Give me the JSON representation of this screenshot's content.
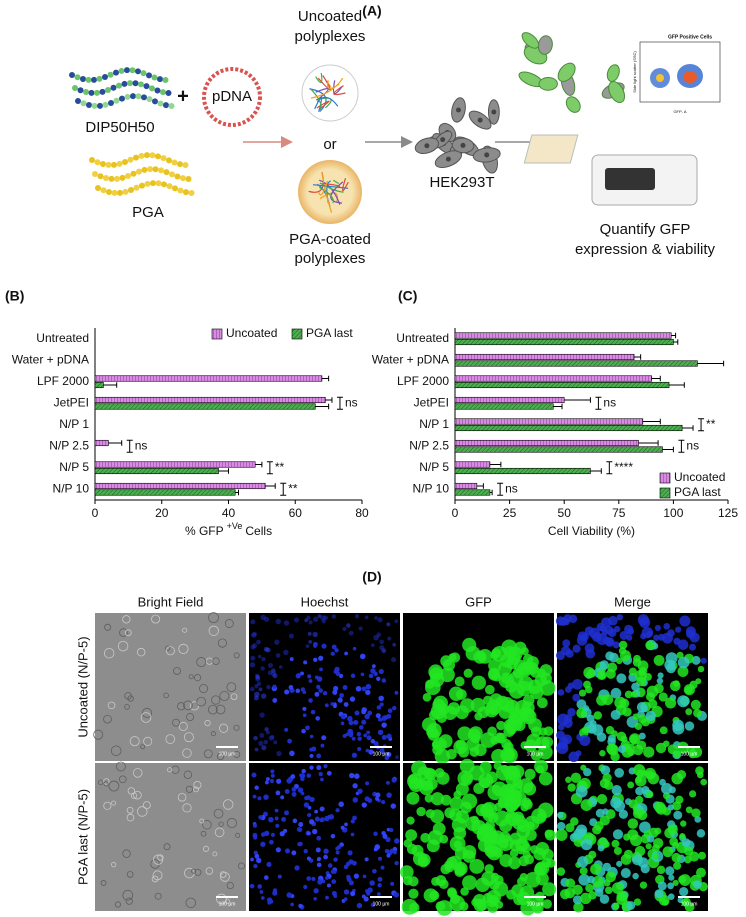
{
  "schematic": {
    "panel": "(A)",
    "polymer": "DIP50H50",
    "plus": "+",
    "plasmid": "pDNA",
    "coating": "PGA",
    "uncoated": [
      "Uncoated",
      "polyplexes"
    ],
    "or": "or",
    "coated": [
      "PGA-coated",
      "polyplexes"
    ],
    "cells": "HEK293T",
    "readout": [
      "Quantify GFP",
      "expression & viability"
    ],
    "flow_title": "GFP Positive Cells",
    "flow_y": "Side light scatter (SSC)",
    "flow_x": "GFP- A"
  },
  "chart_data": [
    {
      "type": "bar",
      "orientation": "horizontal",
      "panel": "(B)",
      "categories": [
        "Untreated",
        "Water + pDNA",
        "LPF 2000",
        "JetPEI",
        "N/P 1",
        "N/P 2.5",
        "N/P 5",
        "N/P 10"
      ],
      "series": [
        {
          "name": "Uncoated",
          "color": "#d98be3",
          "values": [
            0,
            0,
            68,
            69,
            0,
            4,
            48,
            51
          ],
          "errors": [
            0,
            0,
            2,
            2,
            0,
            4,
            2,
            3
          ]
        },
        {
          "name": "PGA last",
          "color": "#4caf50",
          "values": [
            0,
            0,
            2.5,
            66,
            0,
            0,
            37,
            42
          ],
          "errors": [
            0,
            0,
            4,
            4,
            0,
            0,
            3,
            1
          ]
        }
      ],
      "xlim": [
        0,
        80
      ],
      "xticks": [
        0,
        20,
        40,
        60,
        80
      ],
      "xlabel": {
        "text": "% GFP",
        "sup": "+Ve",
        "after": "Cells"
      },
      "legend": "top-right",
      "annotations": [
        {
          "category": "JetPEI",
          "text": "ns"
        },
        {
          "category": "N/P 2.5",
          "text": "ns"
        },
        {
          "category": "N/P 5",
          "text": "**"
        },
        {
          "category": "N/P 10",
          "text": "**"
        }
      ]
    },
    {
      "type": "bar",
      "orientation": "horizontal",
      "panel": "(C)",
      "categories": [
        "Untreated",
        "Water + pDNA",
        "LPF 2000",
        "JetPEI",
        "N/P 1",
        "N/P 2.5",
        "N/P 5",
        "N/P 10"
      ],
      "series": [
        {
          "name": "Uncoated",
          "color": "#d98be3",
          "values": [
            99,
            82,
            90,
            50,
            86,
            84,
            16,
            10
          ],
          "errors": [
            2,
            3,
            4,
            12,
            8,
            9,
            5,
            3
          ]
        },
        {
          "name": "PGA last",
          "color": "#4caf50",
          "values": [
            100,
            111,
            98,
            45,
            104,
            95,
            62,
            16
          ],
          "errors": [
            2,
            12,
            7,
            4,
            5,
            5,
            5,
            1
          ]
        }
      ],
      "xlim": [
        0,
        125
      ],
      "xticks": [
        0,
        25,
        50,
        75,
        100,
        125
      ],
      "xlabel": "Cell Viability (%)",
      "legend": "bottom-right",
      "annotations": [
        {
          "category": "JetPEI",
          "text": "ns"
        },
        {
          "category": "N/P 1",
          "text": "**"
        },
        {
          "category": "N/P 2.5",
          "text": "ns"
        },
        {
          "category": "N/P 5",
          "text": "****"
        },
        {
          "category": "N/P 10",
          "text": "ns"
        }
      ]
    }
  ],
  "microscopy": {
    "panel": "(D)",
    "columns": [
      "Bright Field",
      "Hoechst",
      "GFP",
      "Merge"
    ],
    "rows": [
      "Uncoated (N/P-5)",
      "PGA last (N/P-5)"
    ],
    "scale_bar": "100 µm"
  }
}
